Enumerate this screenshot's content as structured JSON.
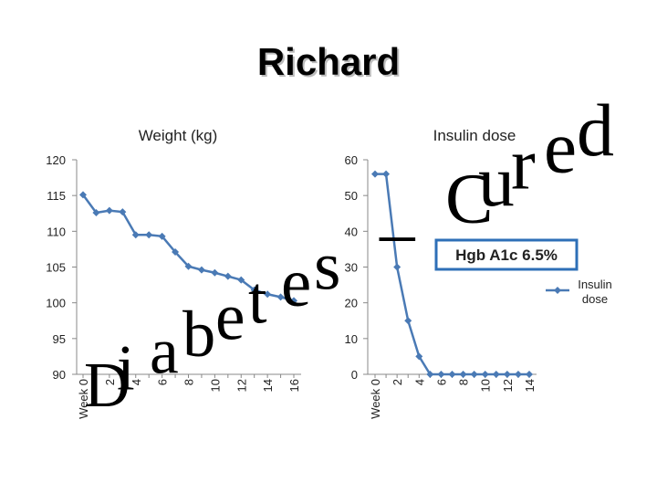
{
  "slide_title": "Richard",
  "wordart": "Diabetes – Cured",
  "callout": "Hgb A1c 6.5%",
  "chart_data": [
    {
      "type": "line",
      "title": "Weight (kg)",
      "color": "#4a7ab5",
      "categories": [
        "Week 0",
        null,
        "2",
        null,
        "4",
        null,
        "6",
        null,
        "8",
        null,
        "10",
        null,
        "12",
        null,
        "14",
        null,
        "16"
      ],
      "values": [
        115.1,
        112.6,
        112.9,
        112.7,
        109.5,
        109.5,
        109.3,
        107.1,
        105.1,
        104.6,
        104.2,
        103.7,
        103.2,
        101.8,
        101.2,
        100.8,
        100.3
      ],
      "ylim": [
        90,
        120
      ],
      "yticks": [
        90,
        95,
        100,
        105,
        110,
        115,
        120
      ]
    },
    {
      "type": "line",
      "title": "Insulin dose",
      "legend": "right",
      "categories": [
        "Week 0",
        null,
        "2",
        null,
        "4",
        null,
        "6",
        null,
        "8",
        null,
        "10",
        null,
        "12",
        null,
        "14"
      ],
      "series": [
        {
          "name": "Insulin dose",
          "color": "#4a7ab5",
          "values": [
            56,
            56,
            30,
            15,
            5,
            0,
            0,
            0,
            0,
            0,
            0,
            0,
            0,
            0,
            0
          ]
        }
      ],
      "ylim": [
        0,
        60
      ],
      "yticks": [
        0,
        10,
        20,
        30,
        40,
        50,
        60
      ]
    }
  ]
}
